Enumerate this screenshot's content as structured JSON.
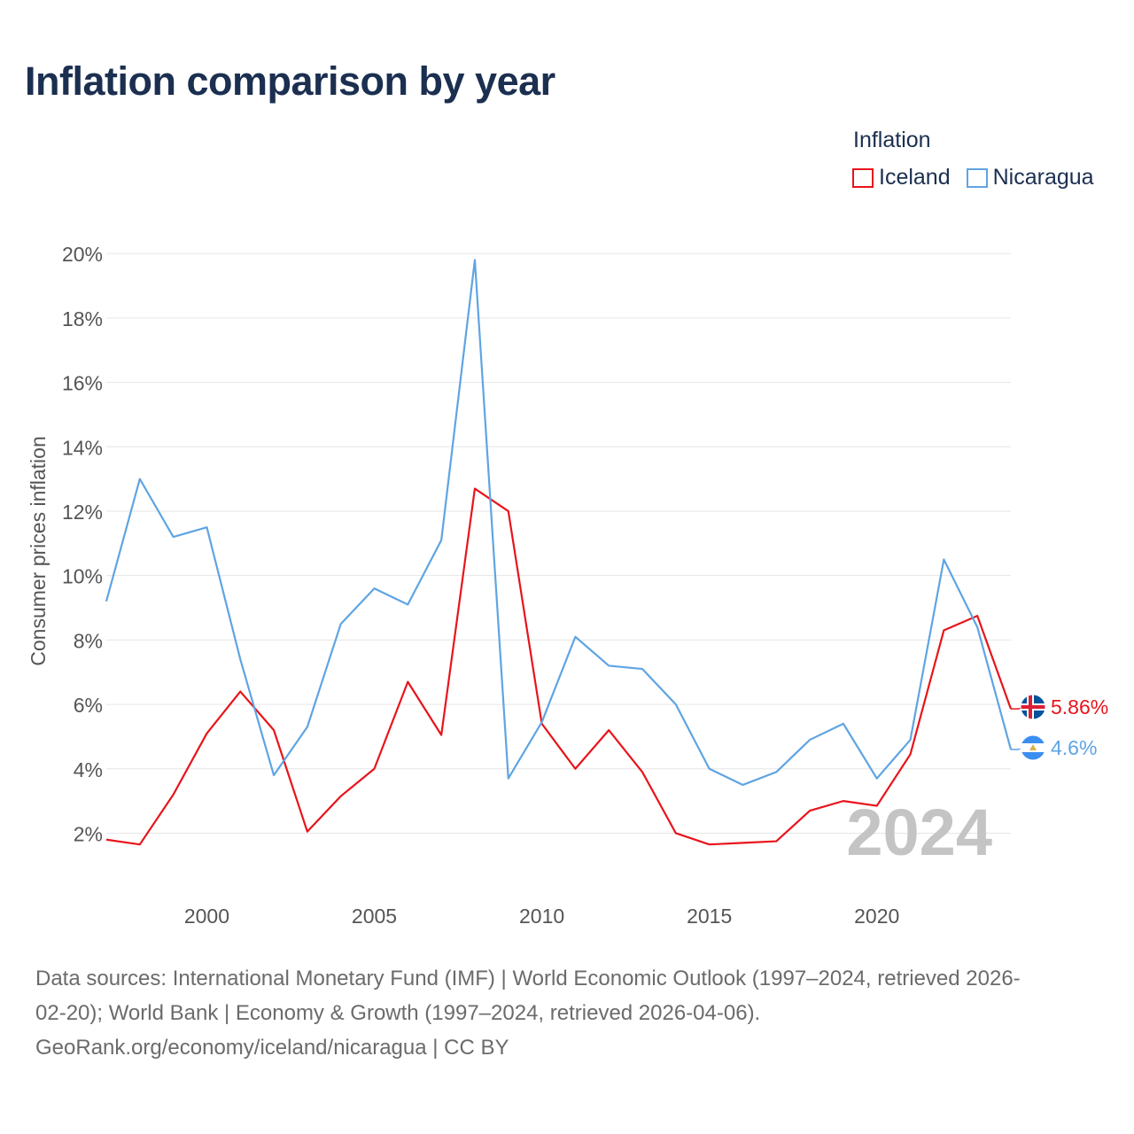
{
  "title": "Inflation comparison by year",
  "legend": {
    "title": "Inflation",
    "items": [
      {
        "label": "Iceland",
        "color": "#e8141b"
      },
      {
        "label": "Nicaragua",
        "color": "#5fa4e3"
      }
    ]
  },
  "footer": {
    "line1": "Data sources: International Monetary Fund (IMF) | World Economic Outlook (1997–2024, retrieved 2026-",
    "line2": "02-20); World Bank | Economy & Growth (1997–2024, retrieved 2026-04-06).",
    "line3": "GeoRank.org/economy/iceland/nicaragua | CC BY"
  },
  "chart_data": {
    "type": "line",
    "ylabel": "Consumer prices inflation",
    "xlabel": "",
    "ylim": [
      0.5,
      20.5
    ],
    "xlim": [
      1997,
      2024
    ],
    "yticks": [
      2,
      4,
      6,
      8,
      10,
      12,
      14,
      16,
      18,
      20
    ],
    "ytick_labels": [
      "2%",
      "4%",
      "6%",
      "8%",
      "10%",
      "12%",
      "14%",
      "16%",
      "18%",
      "20%"
    ],
    "xticks": [
      2000,
      2005,
      2010,
      2015,
      2020
    ],
    "xtick_labels": [
      "2000",
      "2005",
      "2010",
      "2015",
      "2020"
    ],
    "grid": true,
    "year_watermark": "2024",
    "x": [
      1997,
      1998,
      1999,
      2000,
      2001,
      2002,
      2003,
      2004,
      2005,
      2006,
      2007,
      2008,
      2009,
      2010,
      2011,
      2012,
      2013,
      2014,
      2015,
      2016,
      2017,
      2018,
      2019,
      2020,
      2021,
      2022,
      2023,
      2024
    ],
    "series": [
      {
        "name": "Iceland",
        "color": "#e8141b",
        "end_label": "5.86%",
        "flag": "iceland-flag-icon",
        "values": [
          1.8,
          1.65,
          3.2,
          5.1,
          6.4,
          5.2,
          2.05,
          3.15,
          4.0,
          6.7,
          5.05,
          12.7,
          12.0,
          5.4,
          4.0,
          5.2,
          3.9,
          2.0,
          1.65,
          1.7,
          1.75,
          2.7,
          3.0,
          2.85,
          4.45,
          8.3,
          8.75,
          5.86
        ]
      },
      {
        "name": "Nicaragua",
        "color": "#5fa4e3",
        "end_label": "4.6%",
        "flag": "nicaragua-flag-icon",
        "values": [
          9.2,
          13.0,
          11.2,
          11.5,
          7.4,
          3.8,
          5.3,
          8.5,
          9.6,
          9.1,
          11.1,
          19.8,
          3.7,
          5.45,
          8.1,
          7.2,
          7.1,
          6.0,
          4.0,
          3.5,
          3.9,
          4.9,
          5.4,
          3.7,
          4.9,
          10.5,
          8.4,
          4.6
        ]
      }
    ]
  }
}
